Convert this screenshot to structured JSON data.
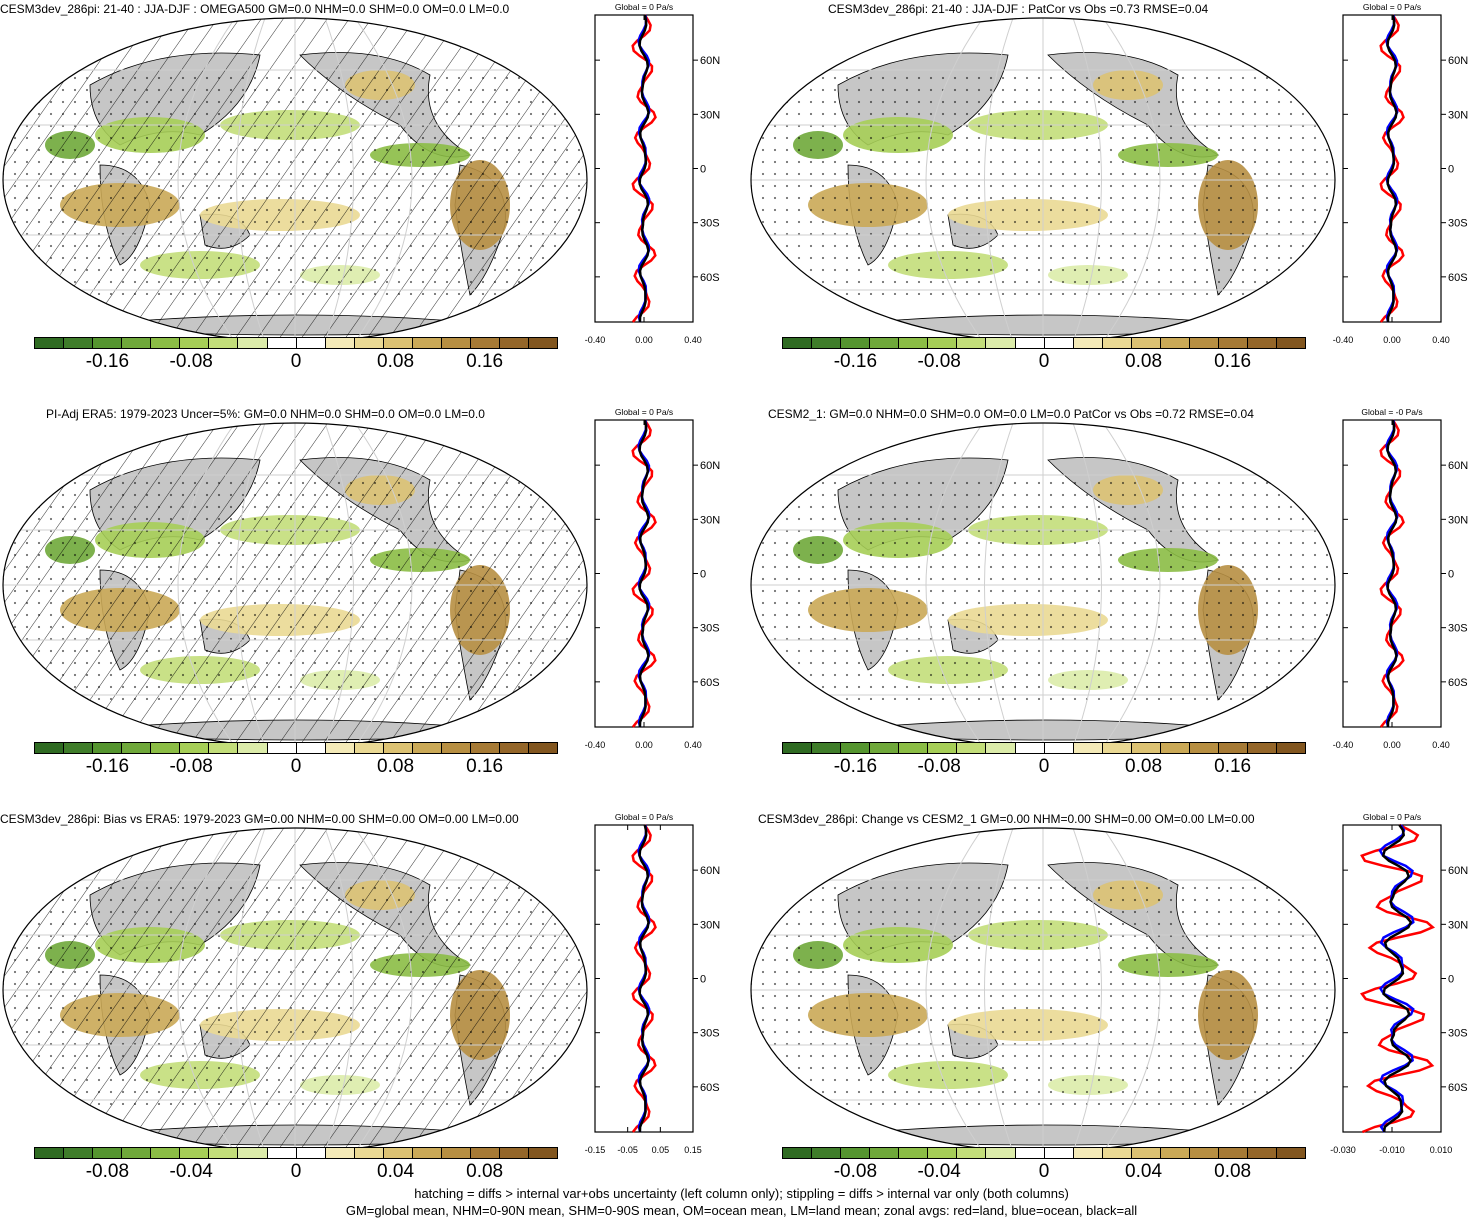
{
  "panels": [
    {
      "title": "CESM3dev_286pi: 21-40 : JJA-DJF : OMEGA500 GM=0.0 NHM=0.0 SHM=0.0 OM=0.0 LM=0.0",
      "profile_title": "Global = 0 Pa/s",
      "colorbar_ticks": [
        "-0.16",
        "-0.08",
        "0",
        "0.08",
        "0.16"
      ],
      "profile_xticks": [
        "-0.40",
        "0.00",
        "0.40"
      ],
      "hatched": true
    },
    {
      "title": "CESM3dev_286pi: 21-40 : JJA-DJF : PatCor vs Obs =0.73 RMSE=0.04",
      "profile_title": "Global = 0 Pa/s",
      "colorbar_ticks": [
        "-0.16",
        "-0.08",
        "0",
        "0.08",
        "0.16"
      ],
      "profile_xticks": [
        "-0.40",
        "0.00",
        "0.40"
      ],
      "hatched": false
    },
    {
      "title": "PI-Adj ERA5: 1979-2023 Uncer=5%: GM=0.0 NHM=0.0 SHM=0.0 OM=0.0 LM=0.0",
      "profile_title": "Global = 0 Pa/s",
      "colorbar_ticks": [
        "-0.16",
        "-0.08",
        "0",
        "0.08",
        "0.16"
      ],
      "profile_xticks": [
        "-0.40",
        "0.00",
        "0.40"
      ],
      "hatched": true
    },
    {
      "title": "CESM2_1: GM=0.0 NHM=0.0 SHM=0.0 OM=0.0 LM=0.0 PatCor vs Obs =0.72 RMSE=0.04",
      "profile_title": "Global = -0 Pa/s",
      "colorbar_ticks": [
        "-0.16",
        "-0.08",
        "0",
        "0.08",
        "0.16"
      ],
      "profile_xticks": [
        "-0.40",
        "0.00",
        "0.40"
      ],
      "hatched": false
    },
    {
      "title": "CESM3dev_286pi: Bias vs ERA5: 1979-2023 GM=0.00 NHM=0.00 SHM=0.00 OM=0.00 LM=0.00",
      "profile_title": "Global = 0 Pa/s",
      "colorbar_ticks": [
        "-0.08",
        "-0.04",
        "0",
        "0.04",
        "0.08"
      ],
      "profile_xticks": [
        "-0.15",
        "-0.05",
        "0.05",
        "0.15"
      ],
      "hatched": true
    },
    {
      "title": "CESM3dev_286pi: Change vs CESM2_1 GM=0.00 NHM=0.00 SHM=0.00 OM=0.00 LM=0.00",
      "profile_title": "Global = 0 Pa/s",
      "colorbar_ticks": [
        "-0.08",
        "-0.04",
        "0",
        "0.04",
        "0.08"
      ],
      "profile_xticks": [
        "-0.030",
        "-0.010",
        "0.010"
      ],
      "hatched": false
    }
  ],
  "lat_labels": [
    "60N",
    "30N",
    "0",
    "30S",
    "60S"
  ],
  "colorbar_colors": [
    "#2f6b22",
    "#3f7d2a",
    "#55952f",
    "#6fa83a",
    "#8bbd45",
    "#a6ce57",
    "#c3de7a",
    "#dcecaa",
    "#ffffff",
    "#ffffff",
    "#f4eab8",
    "#ead994",
    "#dcc273",
    "#caa957",
    "#b78f42",
    "#a67a35",
    "#946629",
    "#82561f"
  ],
  "colors": {
    "land": "#c6c6c6",
    "ocean": "#ffffff",
    "profile_land": "#ff0000",
    "profile_ocean": "#0000ff",
    "profile_all": "#000000"
  },
  "footer": [
    "hatching = diffs > internal var+obs uncertainty (left column only); stippling = diffs > internal var only (both columns)",
    "GM=global mean, NHM=0-90N mean, SHM=0-90S mean, OM=ocean mean, LM=land mean; zonal avgs: red=land, blue=ocean, black=all"
  ]
}
